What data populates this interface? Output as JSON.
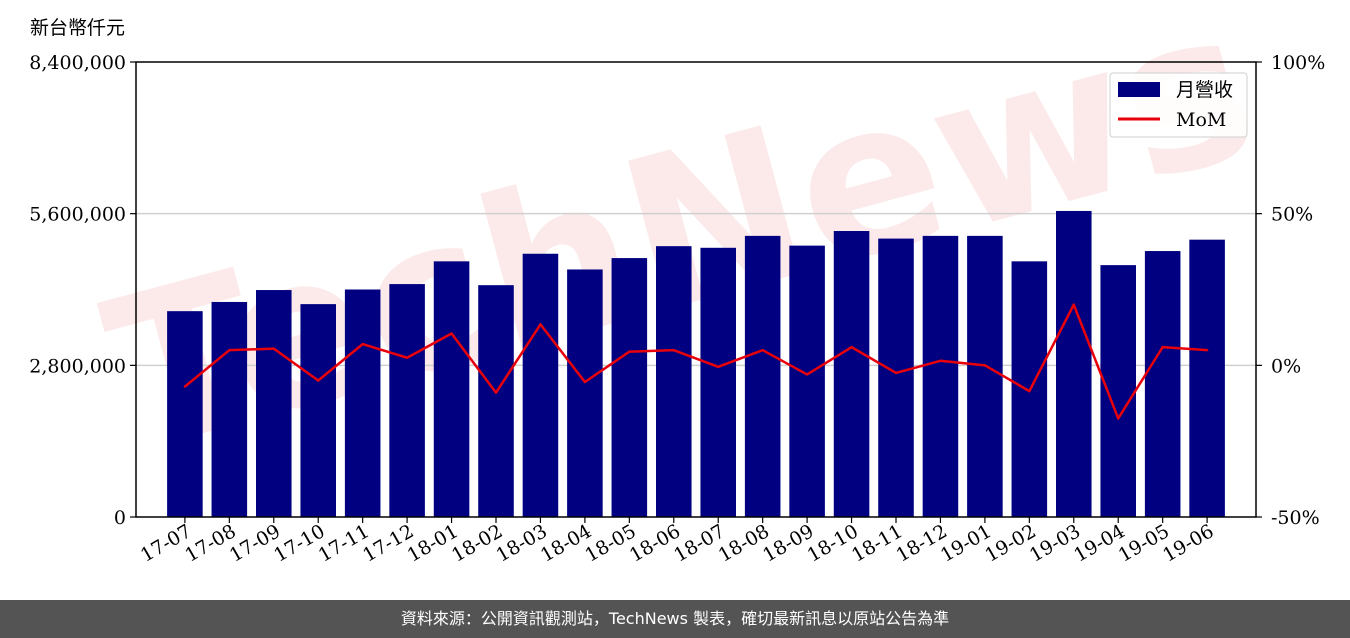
{
  "footer": {
    "source_text": "資料來源：公開資訊觀測站，TechNews 製表，確切最新訊息以原站公告為準"
  },
  "watermark": {
    "text": "TechNews"
  },
  "chart_data": {
    "type": "bar",
    "units_label": "新台幣仟元",
    "categories": [
      "17-07",
      "17-08",
      "17-09",
      "17-10",
      "17-11",
      "17-12",
      "18-01",
      "18-02",
      "18-03",
      "18-04",
      "18-05",
      "18-06",
      "18-07",
      "18-08",
      "18-09",
      "18-10",
      "18-11",
      "18-12",
      "19-01",
      "19-02",
      "19-03",
      "19-04",
      "19-05",
      "19-06"
    ],
    "series": [
      {
        "name": "月營收",
        "type": "bar",
        "axis": "left",
        "color": "#000080",
        "values": [
          3800000,
          3970000,
          4190000,
          3930000,
          4200000,
          4300000,
          4720000,
          4280000,
          4860000,
          4570000,
          4780000,
          5000000,
          4970000,
          5190000,
          5010000,
          5280000,
          5140000,
          5190000,
          5190000,
          4720000,
          5650000,
          4650000,
          4910000,
          5120000
        ]
      },
      {
        "name": "MoM",
        "type": "line",
        "axis": "right",
        "color": "#e8000b",
        "values": [
          -7,
          5,
          5.5,
          -5,
          7,
          2.5,
          10.5,
          -9,
          13.5,
          -5.5,
          4.5,
          5,
          -0.5,
          5,
          -3,
          6,
          -2.5,
          1.5,
          0,
          -8.5,
          20,
          -17.5,
          6,
          5
        ]
      }
    ],
    "y_left": {
      "ylim": [
        0,
        8400000
      ],
      "ticks": [
        "0",
        "2,800,000",
        "5,600,000",
        "8,400,000"
      ],
      "tick_values": [
        0,
        2800000,
        5600000,
        8400000
      ]
    },
    "y_right": {
      "ylim": [
        -50,
        100
      ],
      "ticks": [
        "-50%",
        "0%",
        "50%",
        "100%"
      ],
      "tick_values": [
        -50,
        0,
        50,
        100
      ]
    },
    "grid": "horizontal",
    "legend": "top-right"
  }
}
